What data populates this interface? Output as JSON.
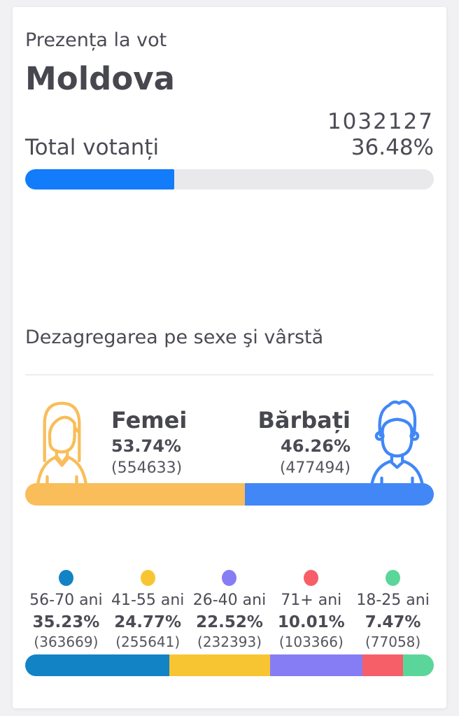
{
  "page": {
    "subtitle": "Prezența la vot",
    "region": "Moldova"
  },
  "turnout": {
    "label": "Total votanți",
    "count": "1032127",
    "percent": "36.48%",
    "percent_value": 36.48,
    "fill_color": "#127cfa",
    "track_color": "#e9e9eb"
  },
  "demographics": {
    "heading": "Dezagregarea pe sexe şi vârstă",
    "female": {
      "label": "Femei",
      "percent": "53.74%",
      "count": "(554633)",
      "value": 53.74,
      "color": "#f9bd59"
    },
    "male": {
      "label": "Bărbați",
      "percent": "46.26%",
      "count": "(477494)",
      "value": 46.26,
      "color": "#4187f6"
    },
    "age_groups": [
      {
        "label": "56-70 ani",
        "percent": "35.23%",
        "count": "(363669)",
        "value": 35.23,
        "color": "#1283c5"
      },
      {
        "label": "41-55 ani",
        "percent": "24.77%",
        "count": "(255641)",
        "value": 24.77,
        "color": "#f8c532"
      },
      {
        "label": "26-40 ani",
        "percent": "22.52%",
        "count": "(232393)",
        "value": 22.52,
        "color": "#867df5"
      },
      {
        "label": "71+ ani",
        "percent": "10.01%",
        "count": "(103366)",
        "value": 10.01,
        "color": "#f65f68"
      },
      {
        "label": "18-25 ani",
        "percent": "7.47%",
        "count": "(77058)",
        "value": 7.47,
        "color": "#5bd69a"
      }
    ]
  },
  "chart_data": [
    {
      "type": "bar",
      "title": "Prezența la vot — Moldova",
      "categories": [
        "Total votanți"
      ],
      "values": [
        36.48
      ],
      "value_labels": [
        "36.48%"
      ],
      "counts": [
        1032127
      ],
      "xlim": [
        0,
        100
      ],
      "bar_color": "#127cfa"
    },
    {
      "type": "bar",
      "title": "Dezagregarea pe sexe şi vârstă — sexe",
      "categories": [
        "Femei",
        "Bărbați"
      ],
      "values": [
        53.74,
        46.26
      ],
      "counts": [
        554633,
        477494
      ],
      "colors": [
        "#f9bd59",
        "#4187f6"
      ],
      "legend_position": "above-bar"
    },
    {
      "type": "bar",
      "title": "Dezagregarea pe sexe şi vârstă — vârstă",
      "categories": [
        "56-70 ani",
        "41-55 ani",
        "26-40 ani",
        "71+ ani",
        "18-25 ani"
      ],
      "values": [
        35.23,
        24.77,
        22.52,
        10.01,
        7.47
      ],
      "counts": [
        363669,
        255641,
        232393,
        103366,
        77058
      ],
      "colors": [
        "#1283c5",
        "#f8c532",
        "#867df5",
        "#f65f68",
        "#5bd69a"
      ],
      "legend_position": "above-bar"
    }
  ]
}
